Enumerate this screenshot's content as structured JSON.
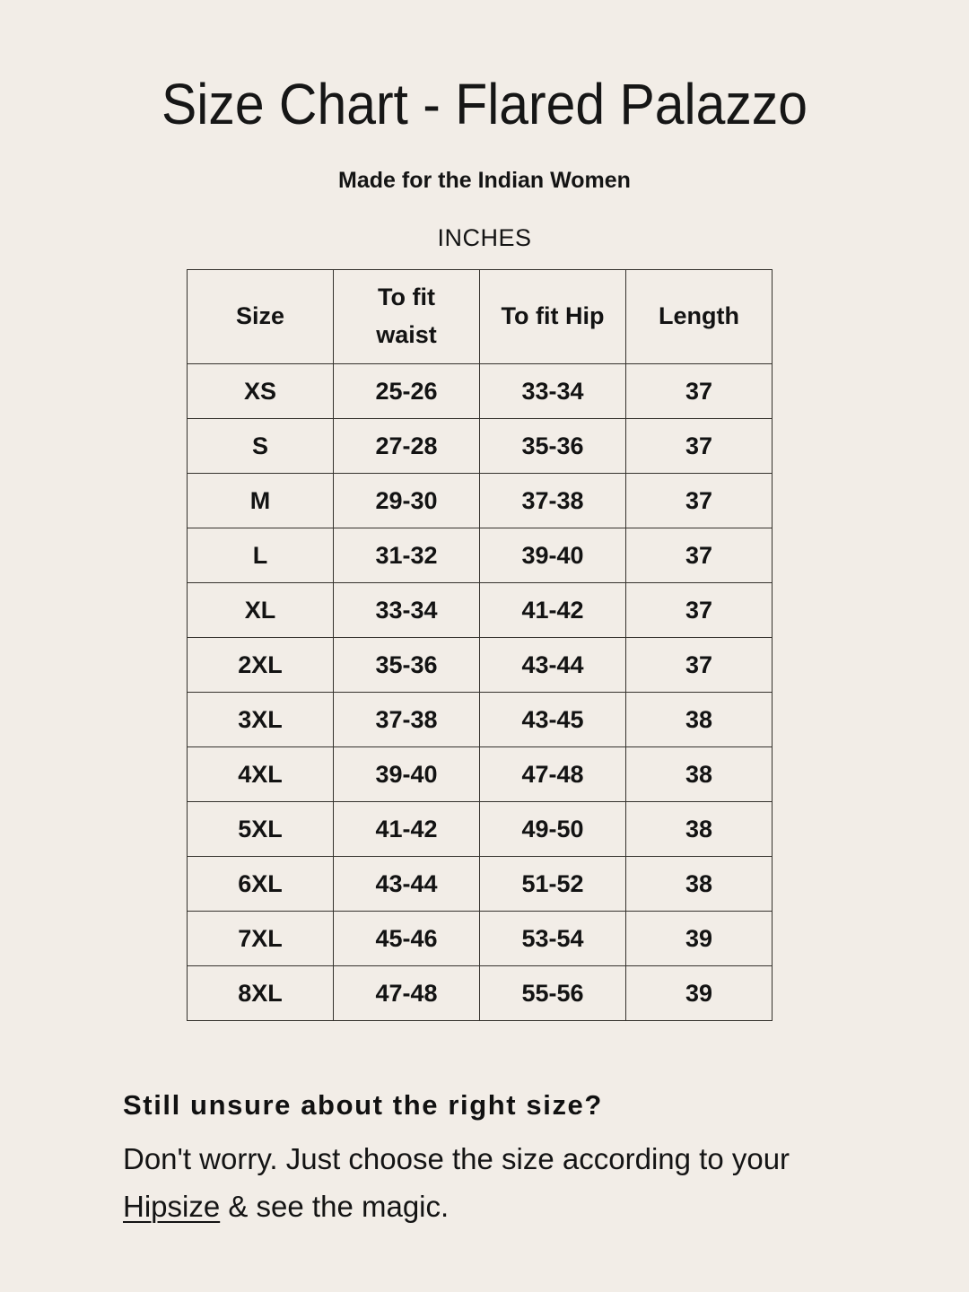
{
  "page": {
    "background_color": "#f2ede7",
    "text_color": "#141414",
    "title": "Size Chart - Flared Palazzo",
    "subtitle": "Made for the Indian Women",
    "unit_label": "INCHES"
  },
  "size_table": {
    "columns": [
      "Size",
      "To fit waist",
      "To fit Hip",
      "Length"
    ],
    "rows": [
      [
        "XS",
        "25-26",
        "33-34",
        "37"
      ],
      [
        "S",
        "27-28",
        "35-36",
        "37"
      ],
      [
        "M",
        "29-30",
        "37-38",
        "37"
      ],
      [
        "L",
        "31-32",
        "39-40",
        "37"
      ],
      [
        "XL",
        "33-34",
        "41-42",
        "37"
      ],
      [
        "2XL",
        "35-36",
        "43-44",
        "37"
      ],
      [
        "3XL",
        "37-38",
        "43-45",
        "38"
      ],
      [
        "4XL",
        "39-40",
        "47-48",
        "38"
      ],
      [
        "5XL",
        "41-42",
        "49-50",
        "38"
      ],
      [
        "6XL",
        "43-44",
        "51-52",
        "38"
      ],
      [
        "7XL",
        "45-46",
        "53-54",
        "39"
      ],
      [
        "8XL",
        "47-48",
        "55-56",
        "39"
      ]
    ]
  },
  "footer": {
    "heading": "Still unsure about the right size?",
    "line1": "Don't worry. Just choose the size according to your",
    "link_text": "Hipsize",
    "line2_rest": "& see the magic."
  }
}
